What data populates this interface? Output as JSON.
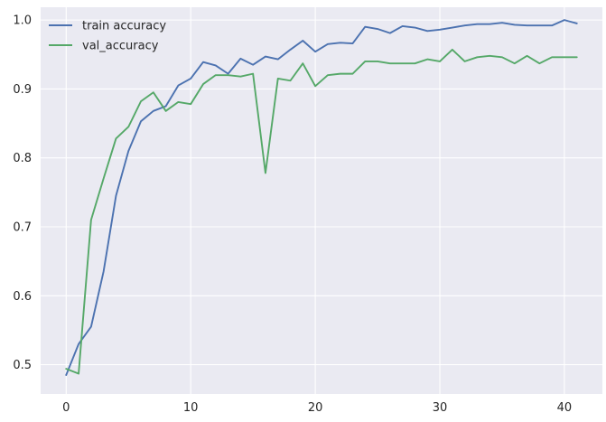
{
  "chart_data": {
    "type": "line",
    "title": "",
    "xlabel": "",
    "ylabel": "",
    "xlim": [
      -2.05,
      43.05
    ],
    "ylim": [
      0.4575,
      1.0185
    ],
    "xticks": [
      0,
      10,
      20,
      30,
      40
    ],
    "yticks": [
      0.5,
      0.6,
      0.7,
      0.8,
      0.9,
      1.0
    ],
    "grid": true,
    "legend_position": "top-left",
    "background": "#eaeaf2",
    "x": [
      0,
      1,
      2,
      3,
      4,
      5,
      6,
      7,
      8,
      9,
      10,
      11,
      12,
      13,
      14,
      15,
      16,
      17,
      18,
      19,
      20,
      21,
      22,
      23,
      24,
      25,
      26,
      27,
      28,
      29,
      30,
      31,
      32,
      33,
      34,
      35,
      36,
      37,
      38,
      39,
      40,
      41
    ],
    "series": [
      {
        "name": "train accuracy",
        "color": "#4c72b0",
        "values": [
          0.485,
          0.53,
          0.555,
          0.635,
          0.745,
          0.81,
          0.853,
          0.868,
          0.875,
          0.905,
          0.915,
          0.939,
          0.934,
          0.922,
          0.944,
          0.935,
          0.947,
          0.943,
          0.957,
          0.97,
          0.954,
          0.965,
          0.967,
          0.966,
          0.99,
          0.987,
          0.981,
          0.991,
          0.989,
          0.984,
          0.986,
          0.989,
          0.992,
          0.994,
          0.994,
          0.996,
          0.993,
          0.992,
          0.992,
          0.992,
          1.0,
          0.995
        ]
      },
      {
        "name": "val_accuracy",
        "color": "#55a868",
        "values": [
          0.494,
          0.487,
          0.71,
          0.77,
          0.828,
          0.845,
          0.882,
          0.895,
          0.868,
          0.881,
          0.878,
          0.907,
          0.92,
          0.92,
          0.918,
          0.922,
          0.778,
          0.915,
          0.912,
          0.937,
          0.904,
          0.92,
          0.922,
          0.922,
          0.94,
          0.94,
          0.937,
          0.937,
          0.937,
          0.943,
          0.94,
          0.957,
          0.94,
          0.946,
          0.948,
          0.946,
          0.937,
          0.948,
          0.937,
          0.946,
          0.946,
          0.946
        ]
      }
    ]
  }
}
